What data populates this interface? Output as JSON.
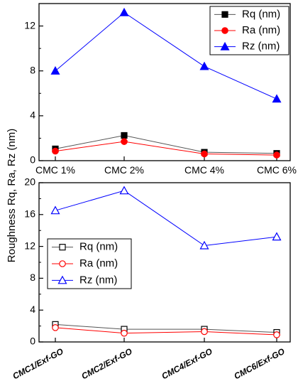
{
  "ylabel": "Roughness Rq, Ra, Rz (nm)",
  "chart_data": [
    {
      "type": "line",
      "categories": [
        "CMC 1%",
        "CMC 2%",
        "CMC 4%",
        "CMC 6%"
      ],
      "ylim": [
        0,
        14
      ],
      "yticks": [
        0,
        4,
        8,
        12
      ],
      "ylabel": "Roughness Rq, Ra, Rz (nm)",
      "legend": "top-right",
      "marker_fill": "filled",
      "series": [
        {
          "name": "Rq (nm)",
          "color": "#000000",
          "marker": "square",
          "line_color": "#555555",
          "values": [
            1.05,
            2.25,
            0.75,
            0.65
          ]
        },
        {
          "name": "Ra (nm)",
          "color": "#ff0000",
          "marker": "circle",
          "line_color": "#ff0000",
          "values": [
            0.85,
            1.7,
            0.6,
            0.5
          ]
        },
        {
          "name": "Rz (nm)",
          "color": "#0000ff",
          "marker": "triangle",
          "line_color": "#0000ff",
          "values": [
            8.0,
            13.2,
            8.4,
            5.5
          ]
        }
      ]
    },
    {
      "type": "line",
      "categories": [
        "CMC1/Exf-GO",
        "CMC2/Exf-GO",
        "CMC4/Exf-GO",
        "CMC6/Exf-GO"
      ],
      "ylim": [
        0,
        20
      ],
      "yticks": [
        0,
        4,
        8,
        12,
        16,
        20
      ],
      "ylabel": "Roughness Rq, Ra, Rz (nm)",
      "legend": "middle-left",
      "marker_fill": "hollow",
      "series": [
        {
          "name": "Rq (nm)",
          "color": "#000000",
          "marker": "square",
          "line_color": "#555555",
          "values": [
            2.2,
            1.6,
            1.6,
            1.2
          ]
        },
        {
          "name": "Ra (nm)",
          "color": "#ff0000",
          "marker": "circle",
          "line_color": "#ff0000",
          "values": [
            1.8,
            1.1,
            1.3,
            0.9
          ]
        },
        {
          "name": "Rz (nm)",
          "color": "#0000ff",
          "marker": "triangle",
          "line_color": "#0000ff",
          "values": [
            16.5,
            19.0,
            12.1,
            13.2
          ]
        }
      ]
    }
  ]
}
